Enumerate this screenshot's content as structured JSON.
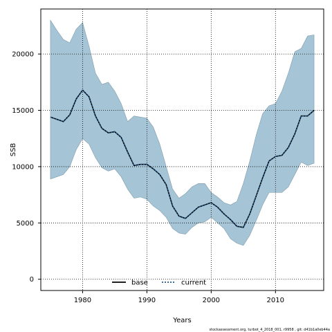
{
  "chart_data": {
    "type": "line",
    "title": "",
    "xlabel": "Years",
    "ylabel": "SSB",
    "xlim": [
      1973.5,
      2017.5
    ],
    "ylim": [
      -1000,
      24000
    ],
    "x_ticks": [
      1980,
      1990,
      2000,
      2010
    ],
    "y_ticks": [
      0,
      5000,
      10000,
      15000,
      20000
    ],
    "grid": true,
    "legend_position": "bottom",
    "x": [
      1975,
      1976,
      1977,
      1978,
      1979,
      1980,
      1981,
      1982,
      1983,
      1984,
      1985,
      1986,
      1987,
      1988,
      1989,
      1990,
      1991,
      1992,
      1993,
      1994,
      1995,
      1996,
      1997,
      1998,
      1999,
      2000,
      2001,
      2002,
      2003,
      2004,
      2005,
      2006,
      2007,
      2008,
      2009,
      2010,
      2011,
      2012,
      2013,
      2014,
      2015,
      2016
    ],
    "series": [
      {
        "name": "base",
        "style": "solid",
        "color": "#000000",
        "values": [
          14400,
          14200,
          14000,
          14600,
          16000,
          16800,
          16200,
          14500,
          13400,
          13000,
          13100,
          12600,
          11300,
          10100,
          10200,
          10200,
          9800,
          9300,
          8400,
          6500,
          5600,
          5400,
          5900,
          6400,
          6600,
          6800,
          6400,
          5800,
          5300,
          4700,
          4600,
          5800,
          7400,
          9000,
          10500,
          10900,
          11000,
          11700,
          12900,
          14500,
          14500,
          15000
        ]
      },
      {
        "name": "current",
        "style": "dotted",
        "color": "#1f5a8c",
        "values": [
          14400,
          14200,
          14000,
          14600,
          16000,
          16800,
          16200,
          14500,
          13400,
          13000,
          13100,
          12600,
          11300,
          10100,
          10200,
          10200,
          9800,
          9300,
          8400,
          6500,
          5600,
          5400,
          5900,
          6400,
          6600,
          6800,
          6400,
          5800,
          5300,
          4700,
          4600,
          5800,
          7400,
          9000,
          10500,
          10900,
          11000,
          11700,
          12900,
          14500,
          14500,
          15000
        ]
      }
    ],
    "confidence_band": {
      "color": "#a5c4d6",
      "upper": [
        23000,
        22100,
        21300,
        21000,
        22200,
        22800,
        20700,
        18300,
        17300,
        17500,
        16700,
        15600,
        14000,
        14500,
        14400,
        14300,
        13500,
        12000,
        10000,
        8000,
        7200,
        7600,
        8200,
        8500,
        8500,
        7700,
        7300,
        6800,
        6600,
        6900,
        8500,
        10500,
        12800,
        14700,
        15400,
        15600,
        16700,
        18300,
        20200,
        20500,
        21600,
        21700
      ],
      "lower": [
        8900,
        9100,
        9300,
        10000,
        11500,
        12500,
        12000,
        10800,
        9900,
        9600,
        9800,
        9100,
        8000,
        7200,
        7300,
        7100,
        6500,
        6100,
        5500,
        4500,
        4100,
        4000,
        4600,
        5000,
        5100,
        5500,
        5000,
        4500,
        3600,
        3200,
        3000,
        3900,
        5200,
        6600,
        7700,
        7700,
        7700,
        8200,
        9300,
        10400,
        10100,
        10300
      ]
    }
  },
  "caption": "stockassessment.org, turbot_4_2018_001, r9958 , git: d41b1a0eb44a"
}
